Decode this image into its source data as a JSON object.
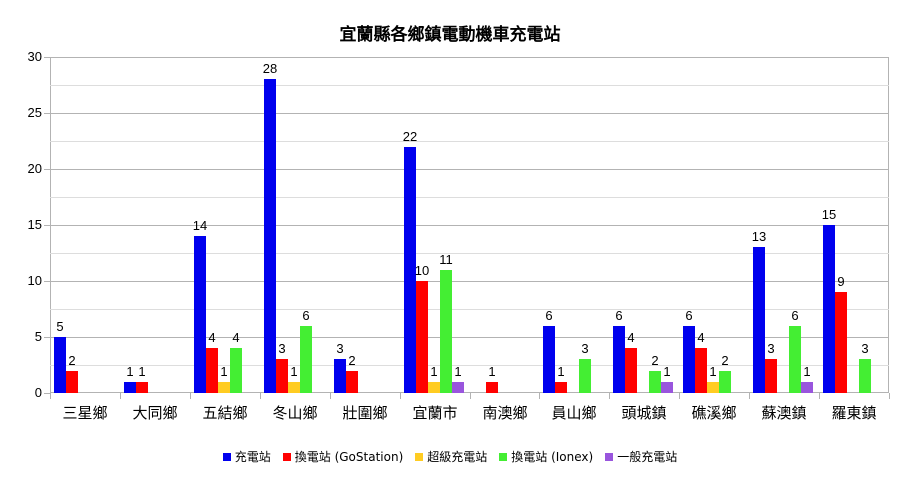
{
  "chart_data": {
    "type": "bar",
    "title": "宜蘭縣各鄉鎮電動機車充電站",
    "xlabel": "",
    "ylabel": "",
    "ylim": [
      0,
      30
    ],
    "yticks": [
      0,
      5,
      10,
      15,
      20,
      25,
      30
    ],
    "grid": true,
    "legend_position": "bottom",
    "categories": [
      "三星鄉",
      "大同鄉",
      "五結鄉",
      "冬山鄉",
      "壯圍鄉",
      "宜蘭市",
      "南澳鄉",
      "員山鄉",
      "頭城鎮",
      "礁溪鄉",
      "蘇澳鎮",
      "羅東鎮"
    ],
    "series": [
      {
        "name": "充電站",
        "color": "#0000ee",
        "values": [
          5,
          1,
          14,
          28,
          3,
          22,
          null,
          6,
          6,
          6,
          13,
          15
        ]
      },
      {
        "name": "換電站 (GoStation)",
        "color": "#ff0000",
        "values": [
          2,
          1,
          4,
          3,
          2,
          10,
          1,
          1,
          4,
          4,
          3,
          9
        ]
      },
      {
        "name": "超級充電站",
        "color": "#ffcc22",
        "values": [
          null,
          null,
          1,
          1,
          null,
          1,
          null,
          null,
          null,
          1,
          null,
          null
        ]
      },
      {
        "name": "換電站 (Ionex)",
        "color": "#44ee33",
        "values": [
          null,
          null,
          4,
          6,
          null,
          11,
          null,
          3,
          2,
          2,
          6,
          3
        ]
      },
      {
        "name": "一般充電站",
        "color": "#9955dd",
        "values": [
          null,
          null,
          null,
          null,
          null,
          1,
          null,
          null,
          1,
          null,
          1,
          null
        ]
      }
    ]
  }
}
